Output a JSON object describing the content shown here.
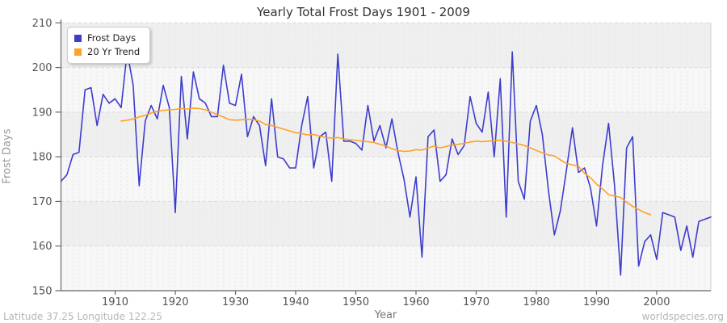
{
  "title": "Yearly Total Frost Days 1901 - 2009",
  "x_axis": {
    "label": "Year"
  },
  "y_axis": {
    "label": "Frost Days"
  },
  "footer": {
    "left": "Latitude 37.25 Longitude 122.25",
    "right": "worldspecies.org"
  },
  "colors": {
    "frost_line": "#3d3dcd",
    "trend_line": "#ffa228",
    "band_dark": "#efefef",
    "band_light": "#f7f7f7",
    "grid_major": "#d9d9d9",
    "grid_minor": "#e7e7e7",
    "axis": "#666666",
    "tick_text": "#555555"
  },
  "chart_data": {
    "type": "line",
    "title": "Yearly Total Frost Days 1901 - 2009",
    "xlabel": "Year",
    "ylabel": "Frost Days",
    "xlim": [
      1901,
      2009
    ],
    "ylim": [
      150,
      210
    ],
    "x_ticks": [
      1910,
      1920,
      1930,
      1940,
      1950,
      1960,
      1970,
      1980,
      1990,
      2000
    ],
    "y_ticks": [
      150,
      160,
      170,
      180,
      190,
      200,
      210
    ],
    "grid": true,
    "legend_position": "top-left",
    "series": [
      {
        "name": "Frost Days",
        "color": "#3d3dcd",
        "x_start": 1901,
        "values": [
          174.5,
          176,
          180.5,
          181,
          195,
          195.5,
          187,
          194,
          192,
          193,
          191,
          203.5,
          196,
          173.5,
          188,
          191.5,
          188.5,
          196,
          191,
          167.5,
          198,
          184,
          199,
          193,
          192,
          189,
          189,
          200.5,
          192,
          191.5,
          198.5,
          184.5,
          189,
          187,
          178,
          193,
          180,
          179.5,
          177.5,
          177.5,
          187,
          193.5,
          177.5,
          184.5,
          185.5,
          174.5,
          203,
          183.5,
          183.5,
          183,
          181.5,
          191.5,
          183.5,
          187,
          182,
          188.5,
          181,
          175,
          166.5,
          175.5,
          157.5,
          184.5,
          186,
          174.5,
          176,
          184,
          180.5,
          182.5,
          193.5,
          187.5,
          185.5,
          194.5,
          180,
          197.5,
          166.5,
          203.5,
          174.5,
          170.5,
          188,
          191.5,
          185,
          172.5,
          162.5,
          168,
          177,
          186.5,
          176.5,
          177.5,
          173,
          164.5,
          178,
          187.5,
          173.5,
          153.5,
          182,
          184.5,
          155.5,
          161,
          162.5,
          157,
          167.5,
          167,
          166.5,
          159,
          164.5,
          157.5,
          165.5,
          166,
          166.5
        ]
      },
      {
        "name": "20 Yr Trend",
        "color": "#ffa228",
        "x_start": 1911,
        "values": [
          188,
          188.2,
          188.5,
          188.9,
          189.3,
          189.8,
          190.2,
          190.4,
          190.5,
          190.6,
          190.8,
          190.7,
          190.9,
          190.8,
          190.5,
          190,
          189.4,
          188.9,
          188.3,
          188.2,
          188.3,
          188.4,
          188.3,
          188,
          187.2,
          187,
          186.6,
          186.2,
          185.8,
          185.4,
          185.2,
          184.9,
          185,
          184.6,
          184.3,
          184.2,
          184.3,
          184,
          183.8,
          183.7,
          183.5,
          183.4,
          183.2,
          182.8,
          182.4,
          181.8,
          181.4,
          181.2,
          181.3,
          181.6,
          181.5,
          182,
          182.4,
          182,
          182.3,
          182.6,
          182.8,
          183,
          183.3,
          183.5,
          183.4,
          183.5,
          183.6,
          183.7,
          183.5,
          183.2,
          182.9,
          182.5,
          182,
          181.4,
          180.9,
          180.4,
          180.2,
          179.3,
          178.5,
          178.2,
          177.9,
          176.3,
          175.3,
          173.9,
          172.8,
          171.5,
          171.2,
          170.9,
          169.8,
          168.9,
          168.2,
          167.5,
          167
        ]
      }
    ]
  }
}
